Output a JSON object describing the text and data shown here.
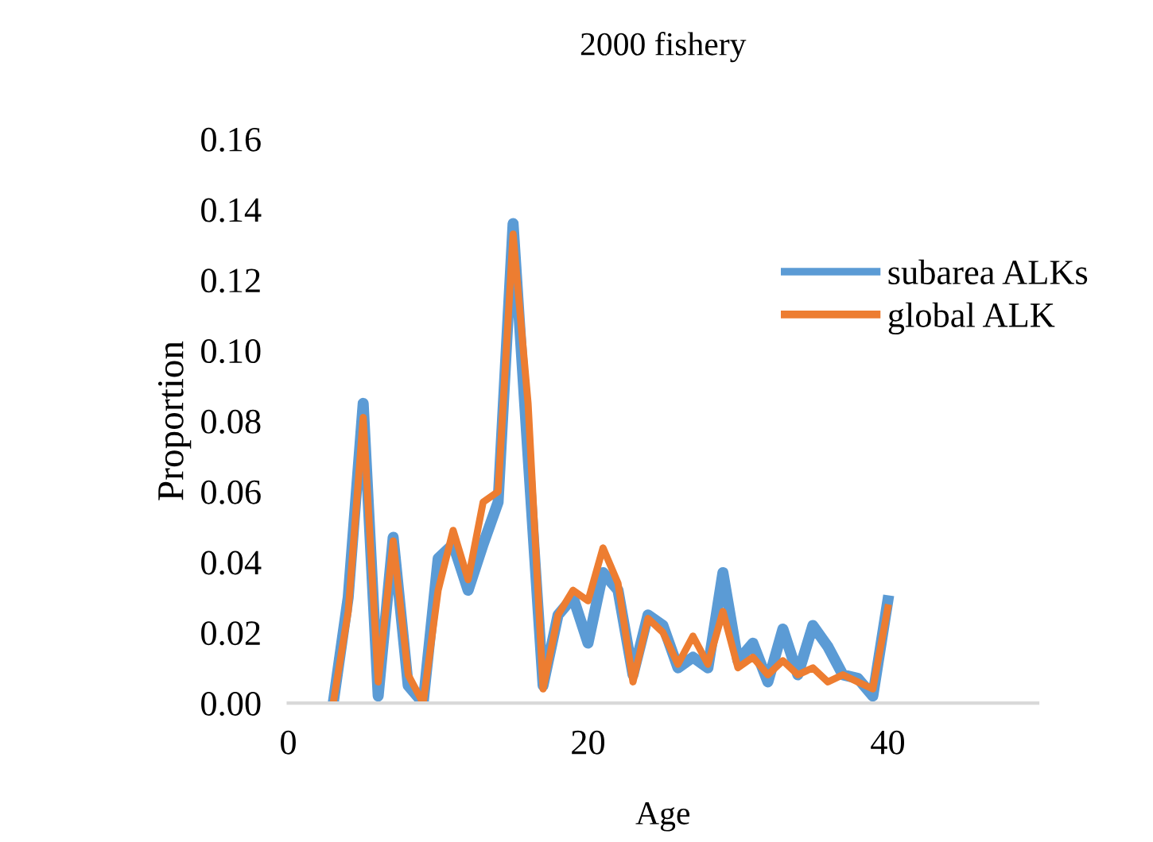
{
  "chart_data": {
    "type": "line",
    "title": "2000 fishery",
    "xlabel": "Age",
    "ylabel": "Proportion",
    "x": [
      3,
      4,
      5,
      6,
      7,
      8,
      9,
      10,
      11,
      12,
      13,
      14,
      15,
      16,
      17,
      18,
      19,
      20,
      21,
      22,
      23,
      24,
      25,
      26,
      27,
      28,
      29,
      30,
      31,
      32,
      33,
      34,
      35,
      36,
      37,
      38,
      39,
      40
    ],
    "series": [
      {
        "name": "subarea ALKs",
        "color": "#5b9bd5",
        "values": [
          0,
          0.03,
          0.085,
          0.002,
          0.047,
          0.005,
          0.0,
          0.041,
          0.045,
          0.032,
          0.045,
          0.057,
          0.136,
          0.07,
          0.005,
          0.025,
          0.03,
          0.017,
          0.037,
          0.032,
          0.008,
          0.025,
          0.022,
          0.01,
          0.013,
          0.01,
          0.037,
          0.012,
          0.017,
          0.006,
          0.021,
          0.008,
          0.022,
          0.016,
          0.008,
          0.007,
          0.002,
          0.029
        ]
      },
      {
        "name": "global ALK",
        "color": "#ed7d31",
        "values": [
          0,
          0.026,
          0.081,
          0.006,
          0.046,
          0.008,
          0.0,
          0.032,
          0.049,
          0.035,
          0.057,
          0.06,
          0.133,
          0.085,
          0.004,
          0.025,
          0.032,
          0.029,
          0.044,
          0.034,
          0.006,
          0.024,
          0.02,
          0.011,
          0.019,
          0.011,
          0.026,
          0.01,
          0.013,
          0.008,
          0.012,
          0.008,
          0.01,
          0.006,
          0.008,
          0.006,
          0.004,
          0.027
        ]
      }
    ],
    "xlim": [
      0,
      50
    ],
    "xticks": [
      0,
      20,
      40
    ],
    "ylim": [
      0,
      0.16
    ],
    "yticks": [
      {
        "value": 0,
        "label": "0.00"
      },
      {
        "value": 0.02,
        "label": "0.02"
      },
      {
        "value": 0.04,
        "label": "0.04"
      },
      {
        "value": 0.06,
        "label": "0.06"
      },
      {
        "value": 0.08,
        "label": "0.08"
      },
      {
        "value": 0.1,
        "label": "0.10"
      },
      {
        "value": 0.12,
        "label": "0.12"
      },
      {
        "value": 0.14,
        "label": "0.14"
      },
      {
        "value": 0.16,
        "label": "0.16"
      }
    ],
    "legend": "right",
    "grid": false
  }
}
